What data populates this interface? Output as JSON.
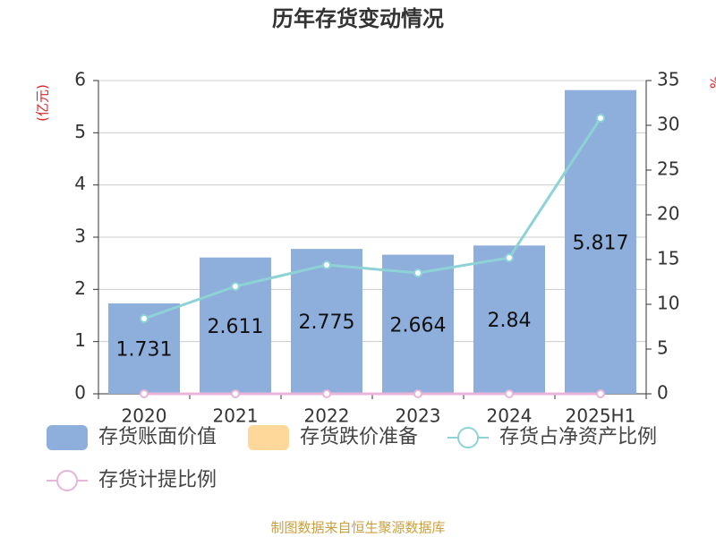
{
  "chart_data": {
    "type": "bar_line",
    "title": "历年存货变动情况",
    "y_label": "(亿元)",
    "y2_label": "%",
    "categories": [
      "2020",
      "2021",
      "2022",
      "2023",
      "2024",
      "2025H1"
    ],
    "series": [
      {
        "name": "存货账面价值",
        "type": "bar",
        "color": "#8eaedb",
        "values": [
          1.731,
          2.611,
          2.775,
          2.664,
          2.84,
          5.817
        ]
      },
      {
        "name": "存货跌价准备",
        "type": "bar",
        "color": "#fdd89a",
        "values": [
          0,
          0,
          0,
          0,
          0,
          0
        ]
      },
      {
        "name": "存货占净资产比例",
        "type": "line",
        "axis": "y2",
        "color": "#8dd3d6",
        "values": [
          8.4,
          12.0,
          14.4,
          13.5,
          15.2,
          30.8
        ]
      },
      {
        "name": "存货计提比例",
        "type": "line",
        "axis": "y2",
        "color": "#e8b4d8",
        "values": [
          0,
          0,
          0,
          0,
          0,
          0
        ]
      }
    ],
    "ylim": [
      0,
      6
    ],
    "yticks": [
      0,
      1,
      2,
      3,
      4,
      5,
      6
    ],
    "y2lim": [
      0,
      35
    ],
    "y2ticks": [
      0,
      5,
      10,
      15,
      20,
      25,
      30,
      35
    ],
    "grid": true,
    "source": "制图数据来自恒生聚源数据库"
  }
}
